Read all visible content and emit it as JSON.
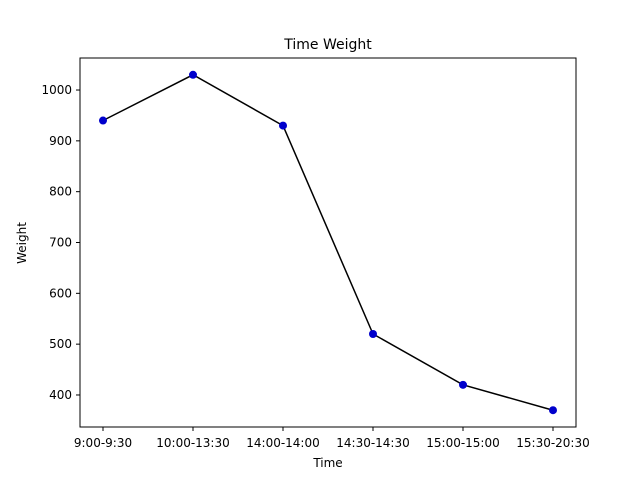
{
  "chart_data": {
    "type": "line",
    "title": "Time Weight",
    "xlabel": "Time",
    "ylabel": "Weight",
    "categories": [
      "9:00-9:30",
      "10:00-13:30",
      "14:00-14:00",
      "14:30-14:30",
      "15:00-15:00",
      "15:30-20:30"
    ],
    "series": [
      {
        "values": [
          940,
          1030,
          930,
          520,
          420,
          370
        ]
      }
    ],
    "ylim": [
      337,
      1063
    ],
    "yticks": [
      400,
      500,
      600,
      700,
      800,
      900,
      1000
    ],
    "grid": false,
    "legend": "none",
    "colors": {
      "line": "#000000",
      "marker": "#0000cc",
      "axes": "#000000"
    }
  }
}
